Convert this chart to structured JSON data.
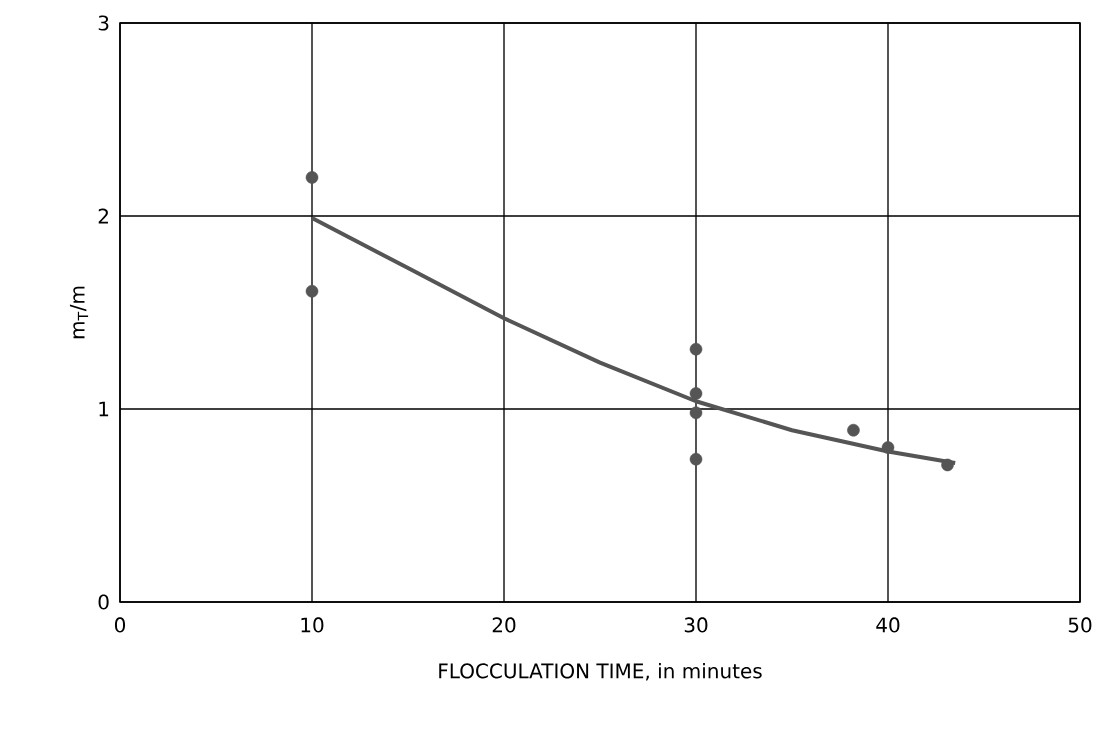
{
  "chart_data": {
    "type": "scatter",
    "xlabel": "FLOCCULATION TIME, in minutes",
    "ylabel": "m$_{T}$/m",
    "xlim": [
      0,
      50
    ],
    "xticks": [
      0,
      10,
      20,
      30,
      40,
      50
    ],
    "ylim": [
      0,
      3
    ],
    "yticks": [
      0,
      1,
      2,
      3
    ],
    "grid": true,
    "series": [
      {
        "color": "#555555",
        "marker": "circle",
        "x": [
          10,
          10,
          30,
          30,
          30,
          30,
          38.2,
          40,
          43.1
        ],
        "values": [
          2.2,
          1.61,
          1.31,
          1.08,
          0.98,
          0.74,
          0.89,
          0.8,
          0.71
        ]
      },
      {
        "type": "line",
        "color": "#555555",
        "marker": "none",
        "line_style": "solid",
        "x": [
          10,
          15,
          20,
          25,
          30,
          35,
          40,
          43.5
        ],
        "values": [
          1.99,
          1.73,
          1.47,
          1.24,
          1.04,
          0.89,
          0.78,
          0.72
        ]
      }
    ]
  }
}
